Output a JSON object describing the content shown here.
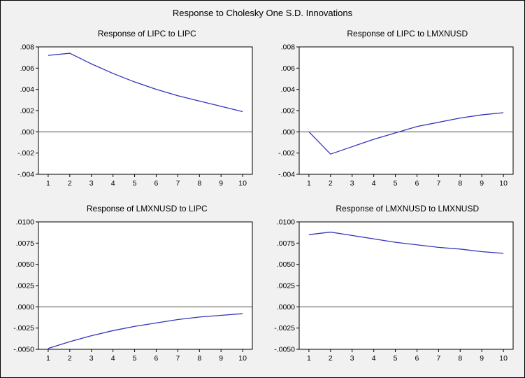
{
  "figure": {
    "title": "Response to Cholesky One S.D. Innovations",
    "line_color": "#3434bb",
    "zero_line_color": "#4a4a4a",
    "plot_bg": "#ffffff",
    "plot_border": "#000000",
    "page_bg": "#f1f1f1"
  },
  "chart_data": [
    {
      "type": "line",
      "title": "Response of LIPC to LIPC",
      "xlabel": "",
      "ylabel": "",
      "legend": "none",
      "grid": false,
      "x": [
        1,
        2,
        3,
        4,
        5,
        6,
        7,
        8,
        9,
        10
      ],
      "values": [
        0.0072,
        0.0074,
        0.0064,
        0.0055,
        0.0047,
        0.004,
        0.0034,
        0.0029,
        0.0024,
        0.0019
      ],
      "ylim": [
        -0.004,
        0.008
      ],
      "ytick_values": [
        0.008,
        0.006,
        0.004,
        0.002,
        0.0,
        -0.002,
        -0.004
      ],
      "ytick_labels": [
        ".008",
        ".006",
        ".004",
        ".002",
        ".000",
        "-.002",
        "-.004"
      ],
      "xtick_labels": [
        "1",
        "2",
        "3",
        "4",
        "5",
        "6",
        "7",
        "8",
        "9",
        "10"
      ]
    },
    {
      "type": "line",
      "title": "Response of LIPC to LMXNUSD",
      "xlabel": "",
      "ylabel": "",
      "legend": "none",
      "grid": false,
      "x": [
        1,
        2,
        3,
        4,
        5,
        6,
        7,
        8,
        9,
        10
      ],
      "values": [
        0.0,
        -0.0021,
        -0.0014,
        -0.0007,
        -0.0001,
        0.0005,
        0.0009,
        0.0013,
        0.0016,
        0.0018
      ],
      "ylim": [
        -0.004,
        0.008
      ],
      "ytick_values": [
        0.008,
        0.006,
        0.004,
        0.002,
        0.0,
        -0.002,
        -0.004
      ],
      "ytick_labels": [
        ".008",
        ".006",
        ".004",
        ".002",
        ".000",
        "-.002",
        "-.004"
      ],
      "xtick_labels": [
        "1",
        "2",
        "3",
        "4",
        "5",
        "6",
        "7",
        "8",
        "9",
        "10"
      ]
    },
    {
      "type": "line",
      "title": "Response of LMXNUSD to LIPC",
      "xlabel": "",
      "ylabel": "",
      "legend": "none",
      "grid": false,
      "x": [
        1,
        2,
        3,
        4,
        5,
        6,
        7,
        8,
        9,
        10
      ],
      "values": [
        -0.0049,
        -0.0041,
        -0.0034,
        -0.0028,
        -0.0023,
        -0.0019,
        -0.0015,
        -0.0012,
        -0.001,
        -0.0008
      ],
      "ylim": [
        -0.005,
        0.01
      ],
      "ytick_values": [
        0.01,
        0.0075,
        0.005,
        0.0025,
        0.0,
        -0.0025,
        -0.005
      ],
      "ytick_labels": [
        ".0100",
        ".0075",
        ".0050",
        ".0025",
        ".0000",
        "-.0025",
        "-.0050"
      ],
      "xtick_labels": [
        "1",
        "2",
        "3",
        "4",
        "5",
        "6",
        "7",
        "8",
        "9",
        "10"
      ]
    },
    {
      "type": "line",
      "title": "Response of LMXNUSD to LMXNUSD",
      "xlabel": "",
      "ylabel": "",
      "legend": "none",
      "grid": false,
      "x": [
        1,
        2,
        3,
        4,
        5,
        6,
        7,
        8,
        9,
        10
      ],
      "values": [
        0.0085,
        0.0088,
        0.0084,
        0.008,
        0.0076,
        0.0073,
        0.007,
        0.0068,
        0.0065,
        0.0063
      ],
      "ylim": [
        -0.005,
        0.01
      ],
      "ytick_values": [
        0.01,
        0.0075,
        0.005,
        0.0025,
        0.0,
        -0.0025,
        -0.005
      ],
      "ytick_labels": [
        ".0100",
        ".0075",
        ".0050",
        ".0025",
        ".0000",
        "-.0025",
        "-.0050"
      ],
      "xtick_labels": [
        "1",
        "2",
        "3",
        "4",
        "5",
        "6",
        "7",
        "8",
        "9",
        "10"
      ]
    }
  ]
}
